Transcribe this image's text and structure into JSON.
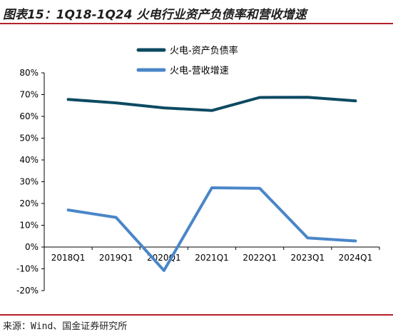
{
  "title": "图表15：1Q18-1Q24 火电行业资产负债率和营收增速",
  "source": "来源：Wind、国金证券研究所",
  "chart_data": {
    "type": "line",
    "categories": [
      "2018Q1",
      "2019Q1",
      "2020Q1",
      "2021Q1",
      "2022Q1",
      "2023Q1",
      "2024Q1"
    ],
    "ylim": [
      -20,
      80
    ],
    "yticks": [
      "80%",
      "70%",
      "60%",
      "50%",
      "40%",
      "30%",
      "20%",
      "10%",
      "0%",
      "-10%",
      "-20%"
    ],
    "ytick_values": [
      80,
      70,
      60,
      50,
      40,
      30,
      20,
      10,
      0,
      -10,
      -20
    ],
    "series": [
      {
        "name": "火电-资产负债率",
        "color": "#0d4a62",
        "values": [
          67.8,
          66.2,
          63.9,
          62.7,
          68.7,
          68.8,
          67.1
        ]
      },
      {
        "name": "火电-营收增速",
        "color": "#4a86c8",
        "values": [
          17.0,
          13.6,
          -10.8,
          27.2,
          27.0,
          4.2,
          2.8
        ]
      }
    ],
    "legend_position": "top-center",
    "grid": false
  }
}
